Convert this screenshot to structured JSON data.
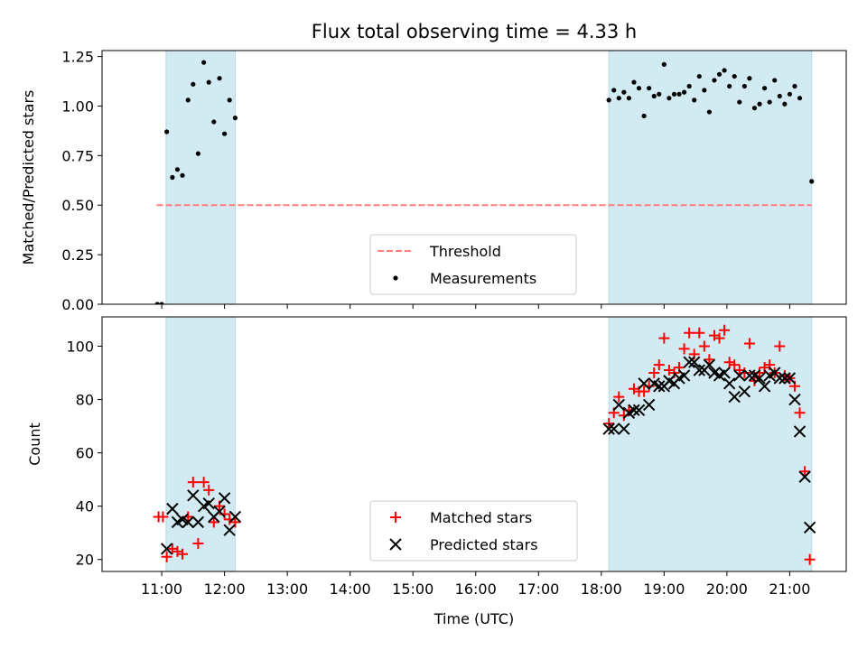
{
  "chart_data": {
    "title": "Flux total observing time = 4.33 h",
    "xlabel": "Time (UTC)",
    "x_unit": "hours UTC",
    "x_ticks": [
      11,
      12,
      13,
      14,
      15,
      16,
      17,
      18,
      19,
      20,
      21
    ],
    "x_tick_labels": [
      "11:00",
      "12:00",
      "13:00",
      "14:00",
      "15:00",
      "16:00",
      "17:00",
      "18:00",
      "19:00",
      "20:00",
      "21:00"
    ],
    "xlim": [
      10.05,
      21.9
    ],
    "shaded_spans": [
      [
        11.07,
        12.17
      ],
      [
        18.12,
        21.35
      ]
    ],
    "shade_color": "#add8e6",
    "panels": [
      {
        "type": "scatter",
        "ylabel": "Matched/Predicted stars",
        "ylim": [
          0,
          1.28
        ],
        "y_ticks": [
          0,
          0.25,
          0.5,
          0.75,
          1.0,
          1.25
        ],
        "y_tick_labels": [
          "0.00",
          "0.25",
          "0.50",
          "0.75",
          "1.00",
          "1.25"
        ],
        "threshold": {
          "name": "Threshold",
          "value": 0.5,
          "x_range": [
            10.92,
            21.35
          ],
          "color": "#ff7f7f"
        },
        "series": [
          {
            "name": "Measurements",
            "color": "#000000",
            "marker": "dot",
            "points": [
              [
                10.93,
                0.0
              ],
              [
                11.0,
                0.0
              ],
              [
                11.08,
                0.87
              ],
              [
                11.17,
                0.64
              ],
              [
                11.25,
                0.68
              ],
              [
                11.33,
                0.65
              ],
              [
                11.42,
                1.03
              ],
              [
                11.5,
                1.11
              ],
              [
                11.58,
                0.76
              ],
              [
                11.67,
                1.22
              ],
              [
                11.75,
                1.12
              ],
              [
                11.83,
                0.92
              ],
              [
                11.92,
                1.14
              ],
              [
                12.0,
                0.86
              ],
              [
                12.08,
                1.03
              ],
              [
                12.17,
                0.94
              ],
              [
                18.12,
                1.03
              ],
              [
                18.2,
                1.08
              ],
              [
                18.28,
                1.04
              ],
              [
                18.36,
                1.07
              ],
              [
                18.44,
                1.04
              ],
              [
                18.52,
                1.12
              ],
              [
                18.6,
                1.09
              ],
              [
                18.68,
                0.95
              ],
              [
                18.76,
                1.09
              ],
              [
                18.84,
                1.05
              ],
              [
                18.92,
                1.06
              ],
              [
                19.0,
                1.21
              ],
              [
                19.08,
                1.04
              ],
              [
                19.16,
                1.06
              ],
              [
                19.24,
                1.06
              ],
              [
                19.32,
                1.07
              ],
              [
                19.4,
                1.1
              ],
              [
                19.48,
                1.03
              ],
              [
                19.56,
                1.15
              ],
              [
                19.64,
                1.08
              ],
              [
                19.72,
                0.97
              ],
              [
                19.8,
                1.13
              ],
              [
                19.88,
                1.16
              ],
              [
                19.96,
                1.18
              ],
              [
                20.04,
                1.1
              ],
              [
                20.12,
                1.15
              ],
              [
                20.2,
                1.02
              ],
              [
                20.28,
                1.1
              ],
              [
                20.36,
                1.14
              ],
              [
                20.44,
                0.99
              ],
              [
                20.52,
                1.01
              ],
              [
                20.6,
                1.09
              ],
              [
                20.68,
                1.02
              ],
              [
                20.76,
                1.13
              ],
              [
                20.84,
                1.05
              ],
              [
                20.92,
                1.01
              ],
              [
                21.0,
                1.06
              ],
              [
                21.08,
                1.1
              ],
              [
                21.16,
                1.04
              ],
              [
                21.35,
                0.62
              ]
            ]
          }
        ],
        "legend": {
          "placement": "lower center",
          "entries": [
            "Threshold",
            "Measurements"
          ]
        }
      },
      {
        "type": "scatter",
        "ylabel": "Count",
        "ylim": [
          15.5,
          111
        ],
        "y_ticks": [
          20,
          40,
          60,
          80,
          100
        ],
        "y_tick_labels": [
          "20",
          "40",
          "60",
          "80",
          "100"
        ],
        "series": [
          {
            "name": "Matched stars",
            "color": "#ff0000",
            "marker": "plus",
            "points": [
              [
                10.95,
                36
              ],
              [
                11.02,
                36
              ],
              [
                11.08,
                21
              ],
              [
                11.17,
                24
              ],
              [
                11.25,
                23
              ],
              [
                11.33,
                22
              ],
              [
                11.42,
                36
              ],
              [
                11.5,
                49
              ],
              [
                11.58,
                26
              ],
              [
                11.67,
                49
              ],
              [
                11.75,
                46
              ],
              [
                11.83,
                34
              ],
              [
                11.92,
                40
              ],
              [
                12.0,
                37
              ],
              [
                12.08,
                35
              ],
              [
                12.17,
                34
              ],
              [
                18.12,
                71
              ],
              [
                18.2,
                75
              ],
              [
                18.28,
                81
              ],
              [
                18.36,
                74
              ],
              [
                18.44,
                76
              ],
              [
                18.52,
                84
              ],
              [
                18.6,
                83
              ],
              [
                18.68,
                83
              ],
              [
                18.76,
                85
              ],
              [
                18.84,
                90
              ],
              [
                18.92,
                93
              ],
              [
                19.0,
                103
              ],
              [
                19.08,
                91
              ],
              [
                19.16,
                90
              ],
              [
                19.24,
                92
              ],
              [
                19.32,
                99
              ],
              [
                19.4,
                105
              ],
              [
                19.48,
                97
              ],
              [
                19.56,
                105
              ],
              [
                19.64,
                100
              ],
              [
                19.72,
                95
              ],
              [
                19.8,
                104
              ],
              [
                19.88,
                103
              ],
              [
                19.96,
                106
              ],
              [
                20.04,
                94
              ],
              [
                20.12,
                93
              ],
              [
                20.2,
                91
              ],
              [
                20.28,
                90
              ],
              [
                20.36,
                101
              ],
              [
                20.44,
                87
              ],
              [
                20.52,
                90
              ],
              [
                20.6,
                92
              ],
              [
                20.68,
                93
              ],
              [
                20.76,
                90
              ],
              [
                20.84,
                100
              ],
              [
                20.92,
                89
              ],
              [
                21.0,
                88
              ],
              [
                21.08,
                85
              ],
              [
                21.16,
                75
              ],
              [
                21.24,
                53
              ],
              [
                21.32,
                20
              ]
            ]
          },
          {
            "name": "Predicted stars",
            "color": "#000000",
            "marker": "x",
            "points": [
              [
                11.08,
                24
              ],
              [
                11.17,
                39
              ],
              [
                11.25,
                34
              ],
              [
                11.33,
                35
              ],
              [
                11.42,
                34
              ],
              [
                11.5,
                44
              ],
              [
                11.58,
                34
              ],
              [
                11.67,
                40
              ],
              [
                11.75,
                41
              ],
              [
                11.83,
                36
              ],
              [
                11.92,
                38
              ],
              [
                12.0,
                43
              ],
              [
                12.08,
                31
              ],
              [
                12.17,
                36
              ],
              [
                18.12,
                69
              ],
              [
                18.2,
                69
              ],
              [
                18.28,
                78
              ],
              [
                18.36,
                69
              ],
              [
                18.44,
                75
              ],
              [
                18.52,
                76
              ],
              [
                18.6,
                76
              ],
              [
                18.68,
                86
              ],
              [
                18.76,
                78
              ],
              [
                18.84,
                86
              ],
              [
                18.92,
                85
              ],
              [
                19.0,
                85
              ],
              [
                19.08,
                87
              ],
              [
                19.16,
                86
              ],
              [
                19.24,
                88
              ],
              [
                19.32,
                89
              ],
              [
                19.4,
                94
              ],
              [
                19.48,
                94
              ],
              [
                19.56,
                91
              ],
              [
                19.64,
                91
              ],
              [
                19.72,
                93
              ],
              [
                19.8,
                90
              ],
              [
                19.88,
                89
              ],
              [
                19.96,
                90
              ],
              [
                20.04,
                86
              ],
              [
                20.12,
                81
              ],
              [
                20.2,
                89
              ],
              [
                20.28,
                83
              ],
              [
                20.36,
                89
              ],
              [
                20.44,
                89
              ],
              [
                20.52,
                88
              ],
              [
                20.6,
                85
              ],
              [
                20.68,
                89
              ],
              [
                20.76,
                90
              ],
              [
                20.84,
                88
              ],
              [
                20.92,
                88
              ],
              [
                21.0,
                88
              ],
              [
                21.08,
                80
              ],
              [
                21.16,
                68
              ],
              [
                21.24,
                51
              ],
              [
                21.32,
                32
              ]
            ]
          }
        ],
        "legend": {
          "placement": "lower center",
          "entries": [
            "Matched stars",
            "Predicted stars"
          ]
        }
      }
    ]
  }
}
